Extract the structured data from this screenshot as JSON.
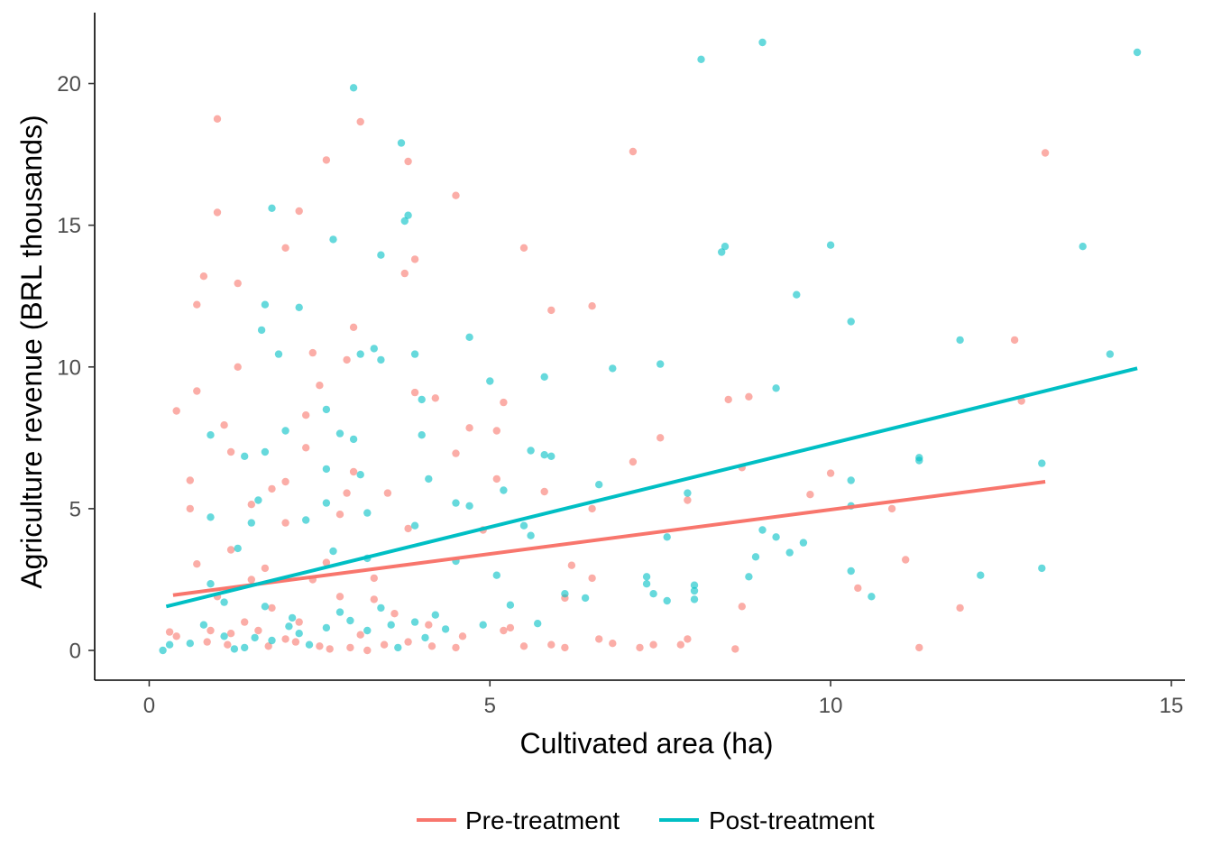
{
  "chart_data": {
    "type": "scatter",
    "xlabel": "Cultivated area (ha)",
    "ylabel": "Agriculture revenue (BRL thousands)",
    "xlim": [
      -0.8,
      15.2
    ],
    "ylim": [
      -1.05,
      22.5
    ],
    "x_ticks": [
      0,
      5,
      10,
      15
    ],
    "y_ticks": [
      0,
      5,
      10,
      15,
      20
    ],
    "x_tick_labels": [
      "0",
      "5",
      "10",
      "15"
    ],
    "y_tick_labels": [
      "0",
      "5",
      "10",
      "15",
      "20"
    ],
    "grid": false,
    "legend_position": "bottom",
    "series": [
      {
        "name": "Pre-treatment",
        "color": "#F8766D",
        "trend": {
          "x": [
            0.35,
            13.15
          ],
          "y": [
            1.95,
            5.95
          ]
        },
        "points": [
          [
            1.0,
            18.75
          ],
          [
            3.1,
            18.65
          ],
          [
            2.6,
            17.3
          ],
          [
            3.8,
            17.25
          ],
          [
            4.5,
            16.05
          ],
          [
            1.0,
            15.45
          ],
          [
            2.2,
            15.5
          ],
          [
            2.0,
            14.2
          ],
          [
            5.5,
            14.2
          ],
          [
            0.8,
            13.2
          ],
          [
            3.75,
            13.3
          ],
          [
            3.9,
            13.8
          ],
          [
            1.3,
            12.95
          ],
          [
            0.7,
            12.2
          ],
          [
            6.5,
            12.15
          ],
          [
            5.9,
            12.0
          ],
          [
            3.0,
            11.4
          ],
          [
            2.4,
            10.5
          ],
          [
            2.9,
            10.25
          ],
          [
            1.3,
            10.0
          ],
          [
            0.7,
            9.15
          ],
          [
            2.5,
            9.35
          ],
          [
            3.9,
            9.1
          ],
          [
            4.2,
            8.9
          ],
          [
            0.4,
            8.45
          ],
          [
            2.3,
            8.3
          ],
          [
            5.2,
            8.75
          ],
          [
            1.1,
            7.95
          ],
          [
            4.7,
            7.85
          ],
          [
            5.1,
            7.75
          ],
          [
            7.5,
            7.5
          ],
          [
            2.3,
            7.15
          ],
          [
            1.2,
            7.0
          ],
          [
            4.5,
            6.95
          ],
          [
            7.1,
            6.65
          ],
          [
            3.0,
            6.3
          ],
          [
            10.0,
            6.25
          ],
          [
            0.6,
            6.0
          ],
          [
            5.1,
            6.05
          ],
          [
            2.0,
            5.95
          ],
          [
            1.8,
            5.7
          ],
          [
            2.9,
            5.55
          ],
          [
            8.7,
            6.45
          ],
          [
            5.8,
            5.6
          ],
          [
            3.5,
            5.55
          ],
          [
            9.7,
            5.5
          ],
          [
            7.9,
            5.3
          ],
          [
            1.5,
            5.15
          ],
          [
            0.6,
            5.0
          ],
          [
            2.8,
            4.8
          ],
          [
            6.5,
            5.0
          ],
          [
            10.9,
            5.0
          ],
          [
            2.0,
            4.5
          ],
          [
            3.8,
            4.3
          ],
          [
            4.9,
            4.25
          ],
          [
            1.2,
            3.55
          ],
          [
            0.7,
            3.05
          ],
          [
            11.1,
            3.2
          ],
          [
            6.2,
            3.0
          ],
          [
            1.7,
            2.9
          ],
          [
            2.6,
            3.1
          ],
          [
            10.4,
            2.2
          ],
          [
            6.5,
            2.55
          ],
          [
            1.5,
            2.5
          ],
          [
            3.3,
            2.55
          ],
          [
            6.1,
            1.85
          ],
          [
            11.9,
            1.5
          ],
          [
            8.7,
            1.55
          ],
          [
            0.3,
            0.65
          ],
          [
            0.4,
            0.5
          ],
          [
            0.9,
            0.7
          ],
          [
            1.2,
            0.6
          ],
          [
            1.6,
            0.7
          ],
          [
            2.0,
            0.4
          ],
          [
            2.5,
            0.15
          ],
          [
            3.1,
            0.55
          ],
          [
            3.8,
            0.3
          ],
          [
            4.5,
            0.1
          ],
          [
            5.2,
            0.7
          ],
          [
            5.5,
            0.15
          ],
          [
            6.1,
            0.1
          ],
          [
            6.8,
            0.25
          ],
          [
            7.2,
            0.1
          ],
          [
            7.8,
            0.2
          ],
          [
            8.6,
            0.05
          ],
          [
            11.3,
            0.1
          ],
          [
            7.4,
            0.2
          ],
          [
            7.9,
            0.4
          ],
          [
            6.6,
            0.4
          ],
          [
            5.9,
            0.2
          ],
          [
            2.2,
            1.0
          ],
          [
            1.0,
            1.9
          ],
          [
            1.8,
            1.5
          ],
          [
            2.8,
            1.9
          ],
          [
            3.6,
            1.3
          ],
          [
            4.1,
            0.9
          ],
          [
            4.6,
            0.5
          ],
          [
            2.4,
            2.5
          ],
          [
            1.4,
            1.0
          ],
          [
            3.3,
            1.8
          ],
          [
            5.3,
            0.8
          ],
          [
            8.8,
            8.95
          ],
          [
            8.5,
            8.85
          ],
          [
            12.7,
            10.95
          ],
          [
            13.15,
            17.55
          ],
          [
            7.1,
            17.6
          ],
          [
            12.8,
            8.8
          ],
          [
            0.85,
            0.3
          ],
          [
            1.15,
            0.2
          ],
          [
            1.75,
            0.15
          ],
          [
            2.15,
            0.3
          ],
          [
            2.65,
            0.05
          ],
          [
            2.95,
            0.1
          ],
          [
            3.45,
            0.2
          ],
          [
            4.15,
            0.15
          ],
          [
            3.2,
            0.0
          ]
        ]
      },
      {
        "name": "Post-treatment",
        "color": "#00BFC4",
        "trend": {
          "x": [
            0.25,
            14.5
          ],
          "y": [
            1.55,
            9.95
          ]
        },
        "points": [
          [
            9.0,
            21.45
          ],
          [
            14.5,
            21.1
          ],
          [
            8.1,
            20.85
          ],
          [
            3.0,
            19.85
          ],
          [
            3.7,
            17.9
          ],
          [
            1.8,
            15.6
          ],
          [
            3.8,
            15.35
          ],
          [
            3.75,
            15.15
          ],
          [
            2.7,
            14.5
          ],
          [
            8.45,
            14.25
          ],
          [
            8.4,
            14.05
          ],
          [
            3.4,
            13.95
          ],
          [
            10.0,
            14.3
          ],
          [
            13.7,
            14.25
          ],
          [
            9.5,
            12.55
          ],
          [
            1.7,
            12.2
          ],
          [
            2.2,
            12.1
          ],
          [
            10.3,
            11.6
          ],
          [
            1.65,
            11.3
          ],
          [
            4.7,
            11.05
          ],
          [
            11.9,
            10.95
          ],
          [
            3.3,
            10.65
          ],
          [
            3.1,
            10.45
          ],
          [
            1.9,
            10.45
          ],
          [
            3.4,
            10.25
          ],
          [
            3.9,
            10.45
          ],
          [
            14.1,
            10.45
          ],
          [
            7.5,
            10.1
          ],
          [
            6.8,
            9.95
          ],
          [
            5.8,
            9.65
          ],
          [
            5.0,
            9.5
          ],
          [
            9.2,
            9.25
          ],
          [
            4.0,
            8.85
          ],
          [
            2.6,
            8.5
          ],
          [
            2.0,
            7.75
          ],
          [
            4.0,
            7.6
          ],
          [
            2.8,
            7.65
          ],
          [
            0.9,
            7.6
          ],
          [
            3.0,
            7.45
          ],
          [
            1.7,
            7.0
          ],
          [
            5.6,
            7.05
          ],
          [
            5.8,
            6.9
          ],
          [
            5.9,
            6.85
          ],
          [
            11.3,
            6.8
          ],
          [
            11.3,
            6.7
          ],
          [
            13.1,
            6.6
          ],
          [
            1.4,
            6.85
          ],
          [
            3.1,
            6.2
          ],
          [
            2.6,
            6.4
          ],
          [
            4.1,
            6.05
          ],
          [
            10.3,
            6.0
          ],
          [
            6.6,
            5.85
          ],
          [
            1.6,
            5.3
          ],
          [
            2.6,
            5.2
          ],
          [
            3.2,
            4.85
          ],
          [
            4.5,
            5.2
          ],
          [
            4.7,
            5.1
          ],
          [
            5.2,
            5.65
          ],
          [
            7.9,
            5.55
          ],
          [
            10.3,
            5.1
          ],
          [
            0.9,
            4.7
          ],
          [
            1.5,
            4.5
          ],
          [
            2.3,
            4.6
          ],
          [
            3.9,
            4.4
          ],
          [
            5.5,
            4.4
          ],
          [
            5.6,
            4.05
          ],
          [
            7.6,
            4.0
          ],
          [
            9.0,
            4.25
          ],
          [
            9.2,
            4.0
          ],
          [
            9.6,
            3.8
          ],
          [
            1.3,
            3.6
          ],
          [
            2.7,
            3.5
          ],
          [
            3.2,
            3.25
          ],
          [
            4.5,
            3.15
          ],
          [
            5.1,
            2.65
          ],
          [
            7.3,
            2.6
          ],
          [
            8.8,
            2.6
          ],
          [
            10.3,
            2.8
          ],
          [
            12.2,
            2.65
          ],
          [
            13.1,
            2.9
          ],
          [
            8.0,
            2.3
          ],
          [
            8.0,
            2.1
          ],
          [
            7.4,
            2.0
          ],
          [
            6.1,
            2.0
          ],
          [
            7.6,
            1.75
          ],
          [
            5.3,
            1.6
          ],
          [
            10.6,
            1.9
          ],
          [
            0.9,
            2.35
          ],
          [
            1.1,
            1.7
          ],
          [
            1.7,
            1.55
          ],
          [
            2.1,
            1.15
          ],
          [
            2.8,
            1.35
          ],
          [
            3.4,
            1.5
          ],
          [
            4.2,
            1.25
          ],
          [
            4.9,
            0.9
          ],
          [
            0.2,
            0.0
          ],
          [
            0.3,
            0.2
          ],
          [
            0.6,
            0.25
          ],
          [
            1.1,
            0.5
          ],
          [
            1.4,
            0.1
          ],
          [
            1.8,
            0.35
          ],
          [
            2.2,
            0.6
          ],
          [
            2.6,
            0.8
          ],
          [
            3.2,
            0.7
          ],
          [
            3.9,
            1.0
          ],
          [
            5.7,
            0.95
          ],
          [
            6.4,
            1.85
          ],
          [
            8.9,
            3.3
          ],
          [
            9.4,
            3.45
          ],
          [
            8.0,
            1.8
          ],
          [
            7.3,
            2.35
          ],
          [
            0.8,
            0.9
          ],
          [
            1.25,
            0.05
          ],
          [
            1.55,
            0.45
          ],
          [
            2.05,
            0.85
          ],
          [
            2.35,
            0.2
          ],
          [
            2.95,
            1.05
          ],
          [
            3.55,
            0.9
          ],
          [
            4.35,
            0.75
          ],
          [
            4.05,
            0.45
          ],
          [
            3.65,
            0.1
          ]
        ]
      }
    ]
  }
}
